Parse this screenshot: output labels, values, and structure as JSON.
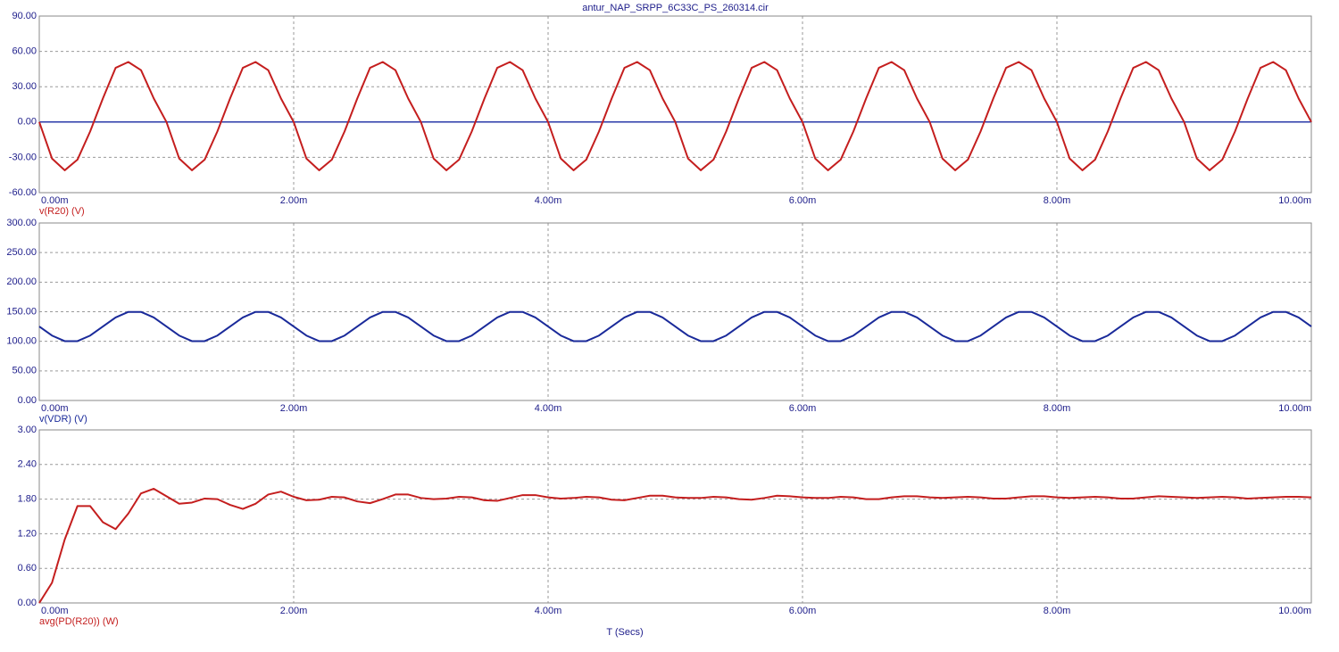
{
  "chart_data": [
    {
      "type": "line",
      "title": "antur_NAP_SRPP_6C33C_PS_260314.cir",
      "grid": true,
      "zero_line": true,
      "xlim": [
        0,
        0.01
      ],
      "xticks": [
        {
          "value": 0,
          "label": "0.00m"
        },
        {
          "value": 0.002,
          "label": "2.00m"
        },
        {
          "value": 0.004,
          "label": "4.00m"
        },
        {
          "value": 0.006,
          "label": "6.00m"
        },
        {
          "value": 0.008,
          "label": "8.00m"
        },
        {
          "value": 0.01,
          "label": "10.00m"
        }
      ],
      "ylim": [
        -60,
        90
      ],
      "yticks": [
        {
          "value": 90,
          "label": "90.00"
        },
        {
          "value": 60,
          "label": "60.00"
        },
        {
          "value": 30,
          "label": "30.00"
        },
        {
          "value": 0,
          "label": "0.00"
        },
        {
          "value": -30,
          "label": "-30.00"
        },
        {
          "value": -60,
          "label": "-60.00"
        }
      ],
      "x": [
        0,
        0.0001,
        0.0002,
        0.0003,
        0.0004,
        0.0005,
        0.0006,
        0.0007,
        0.0008,
        0.0009,
        0.001,
        0.0011,
        0.0012,
        0.0013,
        0.0014,
        0.0015,
        0.0016,
        0.0017,
        0.0018,
        0.0019,
        0.002,
        0.0021,
        0.0022,
        0.0023,
        0.0024,
        0.0025,
        0.0026,
        0.0027,
        0.0028,
        0.0029,
        0.003,
        0.0031,
        0.0032,
        0.0033,
        0.0034,
        0.0035,
        0.0036,
        0.0037,
        0.0038,
        0.0039,
        0.004,
        0.0041,
        0.0042,
        0.0043,
        0.0044,
        0.0045,
        0.0046,
        0.0047,
        0.0048,
        0.0049,
        0.005,
        0.0051,
        0.0052,
        0.0053,
        0.0054,
        0.0055,
        0.0056,
        0.0057,
        0.0058,
        0.0059,
        0.006,
        0.0061,
        0.0062,
        0.0063,
        0.0064,
        0.0065,
        0.0066,
        0.0067,
        0.0068,
        0.0069,
        0.007,
        0.0071,
        0.0072,
        0.0073,
        0.0074,
        0.0075,
        0.0076,
        0.0077,
        0.0078,
        0.0079,
        0.008,
        0.0081,
        0.0082,
        0.0083,
        0.0084,
        0.0085,
        0.0086,
        0.0087,
        0.0088,
        0.0089,
        0.009,
        0.0091,
        0.0092,
        0.0093,
        0.0094,
        0.0095,
        0.0096,
        0.0097,
        0.0098,
        0.0099,
        0.01
      ],
      "series": [
        {
          "name": "v(R20) (V)",
          "color": "#c41e1e",
          "values": [
            0,
            -31,
            -41,
            -32,
            -8,
            20,
            46,
            51,
            44,
            20,
            0,
            -31,
            -41,
            -32,
            -8,
            20,
            46,
            51,
            44,
            20,
            0,
            -31,
            -41,
            -32,
            -8,
            20,
            46,
            51,
            44,
            20,
            0,
            -31,
            -41,
            -32,
            -8,
            20,
            46,
            51,
            44,
            20,
            0,
            -31,
            -41,
            -32,
            -8,
            20,
            46,
            51,
            44,
            20,
            0,
            -31,
            -41,
            -32,
            -8,
            20,
            46,
            51,
            44,
            20,
            0,
            -31,
            -41,
            -32,
            -8,
            20,
            46,
            51,
            44,
            20,
            0,
            -31,
            -41,
            -32,
            -8,
            20,
            46,
            51,
            44,
            20,
            0,
            -31,
            -41,
            -32,
            -8,
            20,
            46,
            51,
            44,
            20,
            0,
            -31,
            -41,
            -32,
            -8,
            20,
            46,
            51,
            44,
            20,
            0
          ]
        }
      ]
    },
    {
      "type": "line",
      "grid": true,
      "xlim": [
        0,
        0.01
      ],
      "xticks": [
        {
          "value": 0,
          "label": "0.00m"
        },
        {
          "value": 0.002,
          "label": "2.00m"
        },
        {
          "value": 0.004,
          "label": "4.00m"
        },
        {
          "value": 0.006,
          "label": "6.00m"
        },
        {
          "value": 0.008,
          "label": "8.00m"
        },
        {
          "value": 0.01,
          "label": "10.00m"
        }
      ],
      "ylim": [
        0,
        300
      ],
      "yticks": [
        {
          "value": 300,
          "label": "300.00"
        },
        {
          "value": 250,
          "label": "250.00"
        },
        {
          "value": 200,
          "label": "200.00"
        },
        {
          "value": 150,
          "label": "150.00"
        },
        {
          "value": 100,
          "label": "100.00"
        },
        {
          "value": 50,
          "label": "50.00"
        },
        {
          "value": 0,
          "label": "0.00"
        }
      ],
      "x": [
        0,
        0.0001,
        0.0002,
        0.0003,
        0.0004,
        0.0005,
        0.0006,
        0.0007,
        0.0008,
        0.0009,
        0.001,
        0.0011,
        0.0012,
        0.0013,
        0.0014,
        0.0015,
        0.0016,
        0.0017,
        0.0018,
        0.0019,
        0.002,
        0.0021,
        0.0022,
        0.0023,
        0.0024,
        0.0025,
        0.0026,
        0.0027,
        0.0028,
        0.0029,
        0.003,
        0.0031,
        0.0032,
        0.0033,
        0.0034,
        0.0035,
        0.0036,
        0.0037,
        0.0038,
        0.0039,
        0.004,
        0.0041,
        0.0042,
        0.0043,
        0.0044,
        0.0045,
        0.0046,
        0.0047,
        0.0048,
        0.0049,
        0.005,
        0.0051,
        0.0052,
        0.0053,
        0.0054,
        0.0055,
        0.0056,
        0.0057,
        0.0058,
        0.0059,
        0.006,
        0.0061,
        0.0062,
        0.0063,
        0.0064,
        0.0065,
        0.0066,
        0.0067,
        0.0068,
        0.0069,
        0.007,
        0.0071,
        0.0072,
        0.0073,
        0.0074,
        0.0075,
        0.0076,
        0.0077,
        0.0078,
        0.0079,
        0.008,
        0.0081,
        0.0082,
        0.0083,
        0.0084,
        0.0085,
        0.0086,
        0.0087,
        0.0088,
        0.0089,
        0.009,
        0.0091,
        0.0092,
        0.0093,
        0.0094,
        0.0095,
        0.0096,
        0.0097,
        0.0098,
        0.0099,
        0.01
      ],
      "series": [
        {
          "name": "v(VDR) (V)",
          "color": "#1a2a9a",
          "values": [
            125,
            109.7,
            100.3,
            100.3,
            109.7,
            125,
            140.3,
            149.7,
            149.7,
            140.3,
            125,
            109.7,
            100.3,
            100.3,
            109.7,
            125,
            140.3,
            149.7,
            149.7,
            140.3,
            125,
            109.7,
            100.3,
            100.3,
            109.7,
            125,
            140.3,
            149.7,
            149.7,
            140.3,
            125,
            109.7,
            100.3,
            100.3,
            109.7,
            125,
            140.3,
            149.7,
            149.7,
            140.3,
            125,
            109.7,
            100.3,
            100.3,
            109.7,
            125,
            140.3,
            149.7,
            149.7,
            140.3,
            125,
            109.7,
            100.3,
            100.3,
            109.7,
            125,
            140.3,
            149.7,
            149.7,
            140.3,
            125,
            109.7,
            100.3,
            100.3,
            109.7,
            125,
            140.3,
            149.7,
            149.7,
            140.3,
            125,
            109.7,
            100.3,
            100.3,
            109.7,
            125,
            140.3,
            149.7,
            149.7,
            140.3,
            125,
            109.7,
            100.3,
            100.3,
            109.7,
            125,
            140.3,
            149.7,
            149.7,
            140.3,
            125,
            109.7,
            100.3,
            100.3,
            109.7,
            125,
            140.3,
            149.7,
            149.7,
            140.3,
            125
          ]
        }
      ]
    },
    {
      "type": "line",
      "grid": true,
      "xlabel": "T (Secs)",
      "xlim": [
        0,
        0.01
      ],
      "xticks": [
        {
          "value": 0,
          "label": "0.00m"
        },
        {
          "value": 0.002,
          "label": "2.00m"
        },
        {
          "value": 0.004,
          "label": "4.00m"
        },
        {
          "value": 0.006,
          "label": "6.00m"
        },
        {
          "value": 0.008,
          "label": "8.00m"
        },
        {
          "value": 0.01,
          "label": "10.00m"
        }
      ],
      "ylim": [
        0,
        3
      ],
      "yticks": [
        {
          "value": 3,
          "label": "3.00"
        },
        {
          "value": 2.4,
          "label": "2.40"
        },
        {
          "value": 1.8,
          "label": "1.80"
        },
        {
          "value": 1.2,
          "label": "1.20"
        },
        {
          "value": 0.6,
          "label": "0.60"
        },
        {
          "value": 0,
          "label": "0.00"
        }
      ],
      "x": [
        0,
        0.0001,
        0.0002,
        0.0003,
        0.0004,
        0.0005,
        0.0006,
        0.0007,
        0.0008,
        0.0009,
        0.001,
        0.0011,
        0.0012,
        0.0013,
        0.0014,
        0.0015,
        0.0016,
        0.0017,
        0.0018,
        0.0019,
        0.002,
        0.0021,
        0.0022,
        0.0023,
        0.0024,
        0.0025,
        0.0026,
        0.0027,
        0.0028,
        0.0029,
        0.003,
        0.0031,
        0.0032,
        0.0033,
        0.0034,
        0.0035,
        0.0036,
        0.0037,
        0.0038,
        0.0039,
        0.004,
        0.0041,
        0.0042,
        0.0043,
        0.0044,
        0.0045,
        0.0046,
        0.0047,
        0.0048,
        0.0049,
        0.005,
        0.0051,
        0.0052,
        0.0053,
        0.0054,
        0.0055,
        0.0056,
        0.0057,
        0.0058,
        0.0059,
        0.006,
        0.0061,
        0.0062,
        0.0063,
        0.0064,
        0.0065,
        0.0066,
        0.0067,
        0.0068,
        0.0069,
        0.007,
        0.0071,
        0.0072,
        0.0073,
        0.0074,
        0.0075,
        0.0076,
        0.0077,
        0.0078,
        0.0079,
        0.008,
        0.0081,
        0.0082,
        0.0083,
        0.0084,
        0.0085,
        0.0086,
        0.0087,
        0.0088,
        0.0089,
        0.009,
        0.0091,
        0.0092,
        0.0093,
        0.0094,
        0.0095,
        0.0096,
        0.0097,
        0.0098,
        0.0099,
        0.01
      ],
      "series": [
        {
          "name": "avg(PD(R20)) (W)",
          "color": "#c41e1e",
          "values": [
            0,
            0.35,
            1.1,
            1.68,
            1.68,
            1.4,
            1.28,
            1.55,
            1.9,
            1.98,
            1.85,
            1.72,
            1.74,
            1.81,
            1.8,
            1.7,
            1.63,
            1.72,
            1.88,
            1.93,
            1.84,
            1.78,
            1.79,
            1.84,
            1.83,
            1.76,
            1.73,
            1.8,
            1.88,
            1.88,
            1.82,
            1.8,
            1.81,
            1.84,
            1.83,
            1.78,
            1.77,
            1.82,
            1.87,
            1.87,
            1.83,
            1.81,
            1.82,
            1.84,
            1.83,
            1.79,
            1.78,
            1.82,
            1.86,
            1.86,
            1.83,
            1.82,
            1.82,
            1.84,
            1.83,
            1.8,
            1.79,
            1.82,
            1.86,
            1.85,
            1.83,
            1.82,
            1.82,
            1.84,
            1.83,
            1.8,
            1.8,
            1.83,
            1.85,
            1.85,
            1.83,
            1.82,
            1.83,
            1.84,
            1.83,
            1.81,
            1.81,
            1.83,
            1.85,
            1.85,
            1.83,
            1.82,
            1.83,
            1.84,
            1.83,
            1.81,
            1.81,
            1.83,
            1.85,
            1.84,
            1.83,
            1.82,
            1.83,
            1.84,
            1.83,
            1.81,
            1.82,
            1.83,
            1.84,
            1.84,
            1.83
          ]
        }
      ]
    }
  ]
}
